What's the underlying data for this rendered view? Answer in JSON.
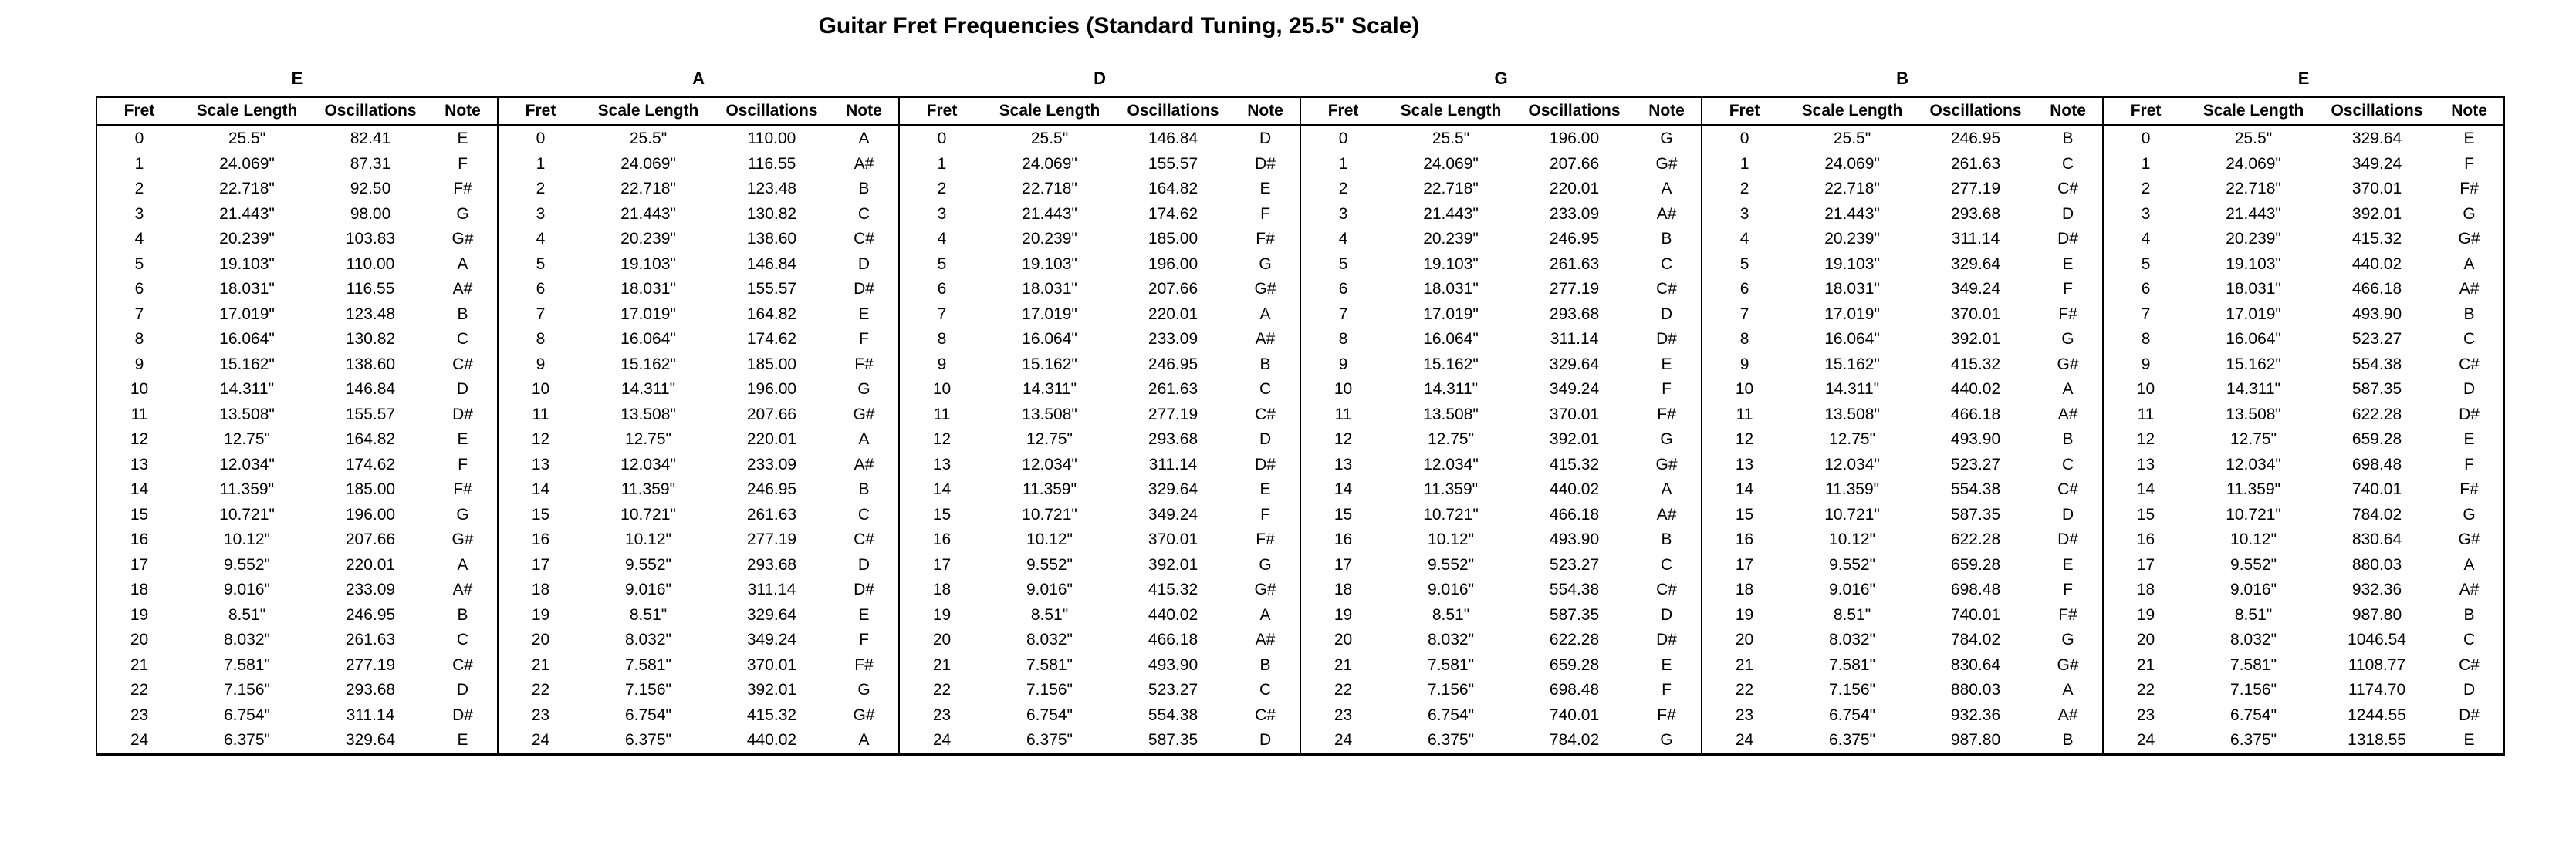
{
  "title": "Guitar Fret Frequencies (Standard Tuning, 25.5\" Scale)",
  "columns": [
    "Fret",
    "Scale Length",
    "Oscillations",
    "Note"
  ],
  "scale_lengths": [
    "25.5\"",
    "24.069\"",
    "22.718\"",
    "21.443\"",
    "20.239\"",
    "19.103\"",
    "18.031\"",
    "17.019\"",
    "16.064\"",
    "15.162\"",
    "14.311\"",
    "13.508\"",
    "12.75\"",
    "12.034\"",
    "11.359\"",
    "10.721\"",
    "10.12\"",
    "9.552\"",
    "9.016\"",
    "8.51\"",
    "8.032\"",
    "7.581\"",
    "7.156\"",
    "6.754\"",
    "6.375\""
  ],
  "strings": [
    {
      "name": "E",
      "frequencies": [
        "82.41",
        "87.31",
        "92.50",
        "98.00",
        "103.83",
        "110.00",
        "116.55",
        "123.48",
        "130.82",
        "138.60",
        "146.84",
        "155.57",
        "164.82",
        "174.62",
        "185.00",
        "196.00",
        "207.66",
        "220.01",
        "233.09",
        "246.95",
        "261.63",
        "277.19",
        "293.68",
        "311.14",
        "329.64"
      ],
      "notes": [
        "E",
        "F",
        "F#",
        "G",
        "G#",
        "A",
        "A#",
        "B",
        "C",
        "C#",
        "D",
        "D#",
        "E",
        "F",
        "F#",
        "G",
        "G#",
        "A",
        "A#",
        "B",
        "C",
        "C#",
        "D",
        "D#",
        "E"
      ]
    },
    {
      "name": "A",
      "frequencies": [
        "110.00",
        "116.55",
        "123.48",
        "130.82",
        "138.60",
        "146.84",
        "155.57",
        "164.82",
        "174.62",
        "185.00",
        "196.00",
        "207.66",
        "220.01",
        "233.09",
        "246.95",
        "261.63",
        "277.19",
        "293.68",
        "311.14",
        "329.64",
        "349.24",
        "370.01",
        "392.01",
        "415.32",
        "440.02"
      ],
      "notes": [
        "A",
        "A#",
        "B",
        "C",
        "C#",
        "D",
        "D#",
        "E",
        "F",
        "F#",
        "G",
        "G#",
        "A",
        "A#",
        "B",
        "C",
        "C#",
        "D",
        "D#",
        "E",
        "F",
        "F#",
        "G",
        "G#",
        "A"
      ]
    },
    {
      "name": "D",
      "frequencies": [
        "146.84",
        "155.57",
        "164.82",
        "174.62",
        "185.00",
        "196.00",
        "207.66",
        "220.01",
        "233.09",
        "246.95",
        "261.63",
        "277.19",
        "293.68",
        "311.14",
        "329.64",
        "349.24",
        "370.01",
        "392.01",
        "415.32",
        "440.02",
        "466.18",
        "493.90",
        "523.27",
        "554.38",
        "587.35"
      ],
      "notes": [
        "D",
        "D#",
        "E",
        "F",
        "F#",
        "G",
        "G#",
        "A",
        "A#",
        "B",
        "C",
        "C#",
        "D",
        "D#",
        "E",
        "F",
        "F#",
        "G",
        "G#",
        "A",
        "A#",
        "B",
        "C",
        "C#",
        "D"
      ]
    },
    {
      "name": "G",
      "frequencies": [
        "196.00",
        "207.66",
        "220.01",
        "233.09",
        "246.95",
        "261.63",
        "277.19",
        "293.68",
        "311.14",
        "329.64",
        "349.24",
        "370.01",
        "392.01",
        "415.32",
        "440.02",
        "466.18",
        "493.90",
        "523.27",
        "554.38",
        "587.35",
        "622.28",
        "659.28",
        "698.48",
        "740.01",
        "784.02"
      ],
      "notes": [
        "G",
        "G#",
        "A",
        "A#",
        "B",
        "C",
        "C#",
        "D",
        "D#",
        "E",
        "F",
        "F#",
        "G",
        "G#",
        "A",
        "A#",
        "B",
        "C",
        "C#",
        "D",
        "D#",
        "E",
        "F",
        "F#",
        "G"
      ]
    },
    {
      "name": "B",
      "frequencies": [
        "246.95",
        "261.63",
        "277.19",
        "293.68",
        "311.14",
        "329.64",
        "349.24",
        "370.01",
        "392.01",
        "415.32",
        "440.02",
        "466.18",
        "493.90",
        "523.27",
        "554.38",
        "587.35",
        "622.28",
        "659.28",
        "698.48",
        "740.01",
        "784.02",
        "830.64",
        "880.03",
        "932.36",
        "987.80"
      ],
      "notes": [
        "B",
        "C",
        "C#",
        "D",
        "D#",
        "E",
        "F",
        "F#",
        "G",
        "G#",
        "A",
        "A#",
        "B",
        "C",
        "C#",
        "D",
        "D#",
        "E",
        "F",
        "F#",
        "G",
        "G#",
        "A",
        "A#",
        "B"
      ]
    },
    {
      "name": "E",
      "frequencies": [
        "329.64",
        "349.24",
        "370.01",
        "392.01",
        "415.32",
        "440.02",
        "466.18",
        "493.90",
        "523.27",
        "554.38",
        "587.35",
        "622.28",
        "659.28",
        "698.48",
        "740.01",
        "784.02",
        "830.64",
        "880.03",
        "932.36",
        "987.80",
        "1046.54",
        "1108.77",
        "1174.70",
        "1244.55",
        "1318.55"
      ],
      "notes": [
        "E",
        "F",
        "F#",
        "G",
        "G#",
        "A",
        "A#",
        "B",
        "C",
        "C#",
        "D",
        "D#",
        "E",
        "F",
        "F#",
        "G",
        "G#",
        "A",
        "A#",
        "B",
        "C",
        "C#",
        "D",
        "D#",
        "E"
      ]
    }
  ]
}
